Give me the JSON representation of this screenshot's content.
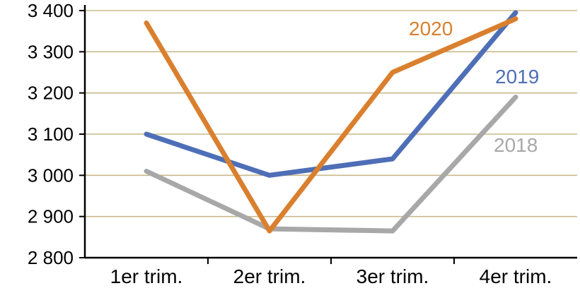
{
  "chart_data": {
    "type": "line",
    "title": "",
    "xlabel": "",
    "ylabel": "",
    "categories": [
      "1er trim.",
      "2er trim.",
      "3er trim.",
      "4er trim."
    ],
    "series": [
      {
        "name": "2018",
        "color": "#a8a8a8",
        "values": [
          3010,
          2870,
          2865,
          3190
        ],
        "label": {
          "text": "2018",
          "x": 698,
          "y": 215
        }
      },
      {
        "name": "2019",
        "color": "#4e6fb7",
        "values": [
          3100,
          3000,
          3040,
          3395
        ],
        "label": {
          "text": "2019",
          "x": 700,
          "y": 118
        }
      },
      {
        "name": "2020",
        "color": "#d9802f",
        "values": [
          3370,
          2865,
          3250,
          3380
        ],
        "label": {
          "text": "2020",
          "x": 578,
          "y": 50
        }
      }
    ],
    "ylim": [
      2800,
      3400
    ],
    "ytick_step": 100,
    "ytick_labels": [
      "2 800",
      "2 900",
      "3 000",
      "3 100",
      "3 200",
      "3 300",
      "3 400"
    ],
    "grid": true,
    "gridline_color": "#c9ba8b",
    "axis_color": "#000000",
    "legend_position": "inline-labels"
  }
}
